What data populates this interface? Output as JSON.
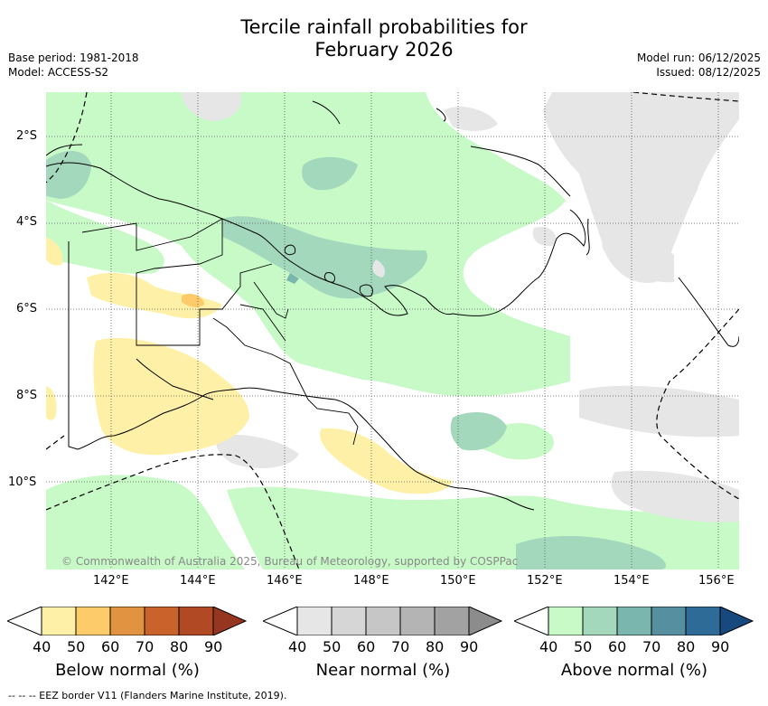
{
  "title": {
    "line1": "Tercile rainfall probabilities for",
    "line2": "February 2026"
  },
  "meta_left": {
    "base_period": "Base period: 1981-2018",
    "model": "Model: ACCESS-S2"
  },
  "meta_right": {
    "model_run": "Model run: 06/12/2025",
    "issued": "Issued: 08/12/2025"
  },
  "map": {
    "lat_labels": [
      "2°S",
      "4°S",
      "6°S",
      "8°S",
      "10°S"
    ],
    "lon_labels": [
      "142°E",
      "144°E",
      "146°E",
      "148°E",
      "150°E",
      "152°E",
      "154°E",
      "156°E"
    ],
    "copyright": "© Commonwealth of Australia 2025, Bureau of Meteorology, supported by COSPPac"
  },
  "colorbars": [
    {
      "id": "below",
      "title": "Below normal (%)",
      "ticks": [
        "40",
        "50",
        "60",
        "70",
        "80",
        "90"
      ],
      "colors": [
        "#fff0a8",
        "#fecb6a",
        "#e29341",
        "#c9632b",
        "#b04924",
        "#963520"
      ]
    },
    {
      "id": "near",
      "title": "Near normal (%)",
      "ticks": [
        "40",
        "50",
        "60",
        "70",
        "80",
        "90"
      ],
      "colors": [
        "#e6e6e6",
        "#d6d6d6",
        "#c6c6c6",
        "#b4b4b4",
        "#a2a2a2",
        "#8c8c8c"
      ]
    },
    {
      "id": "above",
      "title": "Above normal (%)",
      "ticks": [
        "40",
        "50",
        "60",
        "70",
        "80",
        "90"
      ],
      "colors": [
        "#c8fac8",
        "#a3d8bd",
        "#7bb6ae",
        "#5690a0",
        "#2f6b97",
        "#17497f"
      ]
    }
  ],
  "footer": "--  --  -- EEZ border V11 (Flanders Marine Institute, 2019)."
}
